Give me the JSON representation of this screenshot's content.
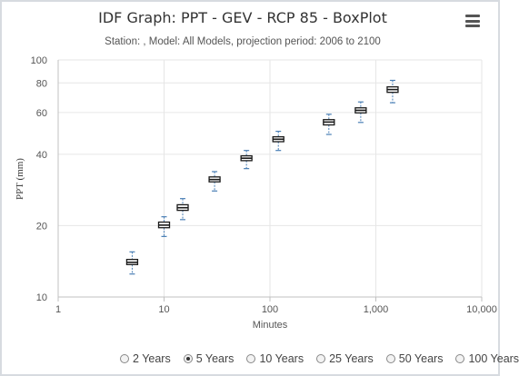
{
  "title": "IDF Graph: PPT - GEV - RCP 85 - BoxPlot",
  "subtitle": "Station: , Model: All Models, projection period: 2006 to 2100",
  "menu_icon": "hamburger-menu-icon",
  "chart_data": {
    "type": "boxplot",
    "xlabel": "Minutes",
    "ylabel": "PPT (mm)",
    "x_scale": "log",
    "y_scale": "log",
    "xlim": [
      1,
      10000
    ],
    "ylim": [
      10,
      100
    ],
    "x_ticks": [
      "1",
      "10",
      "100",
      "1,000",
      "10,000"
    ],
    "x_tick_values": [
      1,
      10,
      100,
      1000,
      10000
    ],
    "y_ticks": [
      "10",
      "20",
      "40",
      "60",
      "80",
      "100"
    ],
    "y_tick_values": [
      10,
      20,
      40,
      60,
      80,
      100
    ],
    "grid": true,
    "boxes": [
      {
        "x": 5,
        "min": 12.5,
        "q1": 13.7,
        "median": 14.0,
        "q3": 14.4,
        "max": 15.5
      },
      {
        "x": 10,
        "min": 18.0,
        "q1": 19.6,
        "median": 20.1,
        "q3": 20.7,
        "max": 21.8
      },
      {
        "x": 15,
        "min": 21.2,
        "q1": 23.2,
        "median": 23.8,
        "q3": 24.5,
        "max": 26.0
      },
      {
        "x": 30,
        "min": 28.0,
        "q1": 30.6,
        "median": 31.3,
        "q3": 32.1,
        "max": 33.8
      },
      {
        "x": 60,
        "min": 34.8,
        "q1": 37.6,
        "median": 38.5,
        "q3": 39.4,
        "max": 41.5
      },
      {
        "x": 120,
        "min": 41.5,
        "q1": 45.2,
        "median": 46.3,
        "q3": 47.4,
        "max": 50.0
      },
      {
        "x": 360,
        "min": 48.5,
        "q1": 53.2,
        "median": 54.7,
        "q3": 56.0,
        "max": 59.0
      },
      {
        "x": 720,
        "min": 54.5,
        "q1": 59.8,
        "median": 61.3,
        "q3": 62.8,
        "max": 66.5
      },
      {
        "x": 1440,
        "min": 66.0,
        "q1": 73.0,
        "median": 75.0,
        "q3": 77.0,
        "max": 82.0
      }
    ]
  },
  "legend": {
    "options": [
      {
        "label": "2 Years",
        "selected": false
      },
      {
        "label": "5 Years",
        "selected": true
      },
      {
        "label": "10 Years",
        "selected": false
      },
      {
        "label": "25 Years",
        "selected": false
      },
      {
        "label": "50 Years",
        "selected": false
      },
      {
        "label": "100 Years",
        "selected": false
      }
    ]
  },
  "colors": {
    "box_stroke": "#1a1a1a",
    "box_fill": "#ffffff",
    "whisker": "#4a7fb5",
    "grid": "#e6e6e6",
    "axis": "#c0c0c0"
  }
}
